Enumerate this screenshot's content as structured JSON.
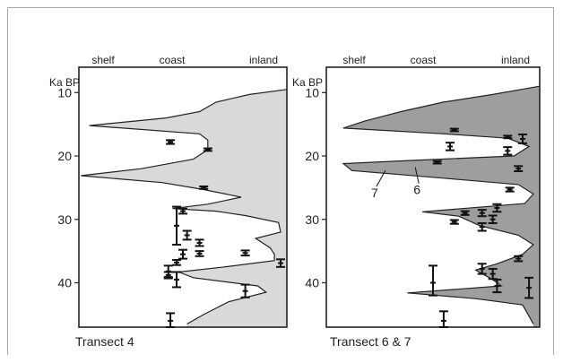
{
  "chart_data": [
    {
      "type": "area",
      "title": "Transect 4",
      "ylabel": "Ka BP",
      "x_categories": [
        "shelf",
        "coast",
        "inland"
      ],
      "yticks": [
        10,
        20,
        30,
        40
      ],
      "ylim": [
        47,
        6
      ],
      "fill_color": "#d9d9d9",
      "boundary": [
        {
          "age": 9.5,
          "pos": 1.0
        },
        {
          "age": 10.3,
          "pos": 0.82
        },
        {
          "age": 11.5,
          "pos": 0.66
        },
        {
          "age": 13.0,
          "pos": 0.58
        },
        {
          "age": 14.0,
          "pos": 0.42
        },
        {
          "age": 15.2,
          "pos": 0.05
        },
        {
          "age": 16.5,
          "pos": 0.58
        },
        {
          "age": 17.5,
          "pos": 0.62
        },
        {
          "age": 19.0,
          "pos": 0.62
        },
        {
          "age": 20.5,
          "pos": 0.55
        },
        {
          "age": 22.0,
          "pos": 0.3
        },
        {
          "age": 23.1,
          "pos": 0.01
        },
        {
          "age": 24.2,
          "pos": 0.4
        },
        {
          "age": 25.3,
          "pos": 0.6
        },
        {
          "age": 26.5,
          "pos": 0.78
        },
        {
          "age": 27.6,
          "pos": 0.62
        },
        {
          "age": 28.3,
          "pos": 0.45
        },
        {
          "age": 28.7,
          "pos": 0.66
        },
        {
          "age": 29.4,
          "pos": 0.8
        },
        {
          "age": 30.5,
          "pos": 0.96
        },
        {
          "age": 32.0,
          "pos": 0.97
        },
        {
          "age": 33.0,
          "pos": 0.85
        },
        {
          "age": 34.5,
          "pos": 0.92
        },
        {
          "age": 35.5,
          "pos": 0.94
        },
        {
          "age": 36.5,
          "pos": 0.94
        },
        {
          "age": 37.5,
          "pos": 0.7
        },
        {
          "age": 38.3,
          "pos": 0.48
        },
        {
          "age": 39.2,
          "pos": 0.55
        },
        {
          "age": 40.5,
          "pos": 0.86
        },
        {
          "age": 41.5,
          "pos": 0.9
        },
        {
          "age": 43.0,
          "pos": 0.72
        },
        {
          "age": 45.0,
          "pos": 0.6
        },
        {
          "age": 46.5,
          "pos": 0.52
        }
      ],
      "dates": [
        {
          "pos": 0.44,
          "age": 17.8,
          "lo": 17.5,
          "hi": 18.1
        },
        {
          "pos": 0.62,
          "age": 19.0,
          "lo": 18.8,
          "hi": 19.2
        },
        {
          "pos": 0.6,
          "age": 25.0,
          "lo": 24.8,
          "hi": 25.2
        },
        {
          "pos": 0.5,
          "age": 28.7,
          "lo": 28.3,
          "hi": 29.1
        },
        {
          "pos": 0.47,
          "age": 31.0,
          "lo": 28.0,
          "hi": 34.0
        },
        {
          "pos": 0.52,
          "age": 32.5,
          "lo": 31.8,
          "hi": 33.2
        },
        {
          "pos": 0.58,
          "age": 33.7,
          "lo": 33.2,
          "hi": 34.2
        },
        {
          "pos": 0.58,
          "age": 35.4,
          "lo": 35.0,
          "hi": 35.8
        },
        {
          "pos": 0.5,
          "age": 35.5,
          "lo": 34.8,
          "hi": 36.2
        },
        {
          "pos": 0.8,
          "age": 35.3,
          "lo": 34.9,
          "hi": 35.7
        },
        {
          "pos": 0.47,
          "age": 36.8,
          "lo": 36.4,
          "hi": 37.2
        },
        {
          "pos": 0.97,
          "age": 36.9,
          "lo": 36.3,
          "hi": 37.5
        },
        {
          "pos": 0.43,
          "age": 38.2,
          "lo": 37.3,
          "hi": 39.1
        },
        {
          "pos": 0.47,
          "age": 39.5,
          "lo": 38.3,
          "hi": 40.7
        },
        {
          "pos": 0.43,
          "age": 38.8,
          "lo": 38.3,
          "hi": 39.3
        },
        {
          "pos": 0.8,
          "age": 41.3,
          "lo": 40.3,
          "hi": 42.3
        },
        {
          "pos": 0.44,
          "age": 46.0,
          "lo": 44.8,
          "hi": 47.0
        }
      ]
    },
    {
      "type": "area",
      "title": "Transect 6 & 7",
      "ylabel": "Ka BP",
      "x_categories": [
        "shelf",
        "coast",
        "inland"
      ],
      "yticks": [
        10,
        20,
        30,
        40
      ],
      "ylim": [
        47,
        6
      ],
      "fill_color": "#9e9e9e",
      "boundary": [
        {
          "age": 9.0,
          "pos": 1.0
        },
        {
          "age": 10.3,
          "pos": 0.78
        },
        {
          "age": 11.5,
          "pos": 0.55
        },
        {
          "age": 13.0,
          "pos": 0.35
        },
        {
          "age": 14.5,
          "pos": 0.18
        },
        {
          "age": 15.6,
          "pos": 0.08
        },
        {
          "age": 16.5,
          "pos": 0.55
        },
        {
          "age": 17.2,
          "pos": 0.85
        },
        {
          "age": 18.5,
          "pos": 0.95
        },
        {
          "age": 20.0,
          "pos": 0.88
        },
        {
          "age": 20.7,
          "pos": 0.4
        },
        {
          "age": 21.2,
          "pos": 0.08
        },
        {
          "age": 22.3,
          "pos": 0.12
        },
        {
          "age": 23.5,
          "pos": 0.55
        },
        {
          "age": 24.5,
          "pos": 0.9
        },
        {
          "age": 26.0,
          "pos": 0.97
        },
        {
          "age": 27.5,
          "pos": 0.93
        },
        {
          "age": 28.8,
          "pos": 0.45
        },
        {
          "age": 29.5,
          "pos": 0.62
        },
        {
          "age": 31.0,
          "pos": 0.72
        },
        {
          "age": 32.5,
          "pos": 0.9
        },
        {
          "age": 34.0,
          "pos": 0.97
        },
        {
          "age": 35.5,
          "pos": 0.92
        },
        {
          "age": 37.0,
          "pos": 0.8
        },
        {
          "age": 38.0,
          "pos": 0.7
        },
        {
          "age": 39.5,
          "pos": 0.78
        },
        {
          "age": 40.5,
          "pos": 0.82
        },
        {
          "age": 41.6,
          "pos": 0.38
        },
        {
          "age": 42.5,
          "pos": 0.7
        },
        {
          "age": 43.5,
          "pos": 0.92
        },
        {
          "age": 46.5,
          "pos": 0.97
        }
      ],
      "dates": [
        {
          "pos": 0.58,
          "age": 18.5,
          "lo": 17.9,
          "hi": 19.1
        },
        {
          "pos": 0.52,
          "age": 21.0,
          "lo": 20.8,
          "hi": 21.2
        },
        {
          "pos": 0.6,
          "age": 15.9,
          "lo": 15.7,
          "hi": 16.1
        },
        {
          "pos": 0.85,
          "age": 17.0,
          "lo": 16.8,
          "hi": 17.2
        },
        {
          "pos": 0.92,
          "age": 17.3,
          "lo": 16.6,
          "hi": 18.0
        },
        {
          "pos": 0.85,
          "age": 19.2,
          "lo": 18.6,
          "hi": 19.8
        },
        {
          "pos": 0.9,
          "age": 22.0,
          "lo": 21.6,
          "hi": 22.4
        },
        {
          "pos": 0.86,
          "age": 25.3,
          "lo": 25.0,
          "hi": 25.6
        },
        {
          "pos": 0.8,
          "age": 28.2,
          "lo": 27.6,
          "hi": 28.8
        },
        {
          "pos": 0.73,
          "age": 29.0,
          "lo": 28.5,
          "hi": 29.5
        },
        {
          "pos": 0.78,
          "age": 30.0,
          "lo": 29.4,
          "hi": 30.6
        },
        {
          "pos": 0.6,
          "age": 30.4,
          "lo": 30.1,
          "hi": 30.7
        },
        {
          "pos": 0.65,
          "age": 29.0,
          "lo": 28.7,
          "hi": 29.3
        },
        {
          "pos": 0.73,
          "age": 31.2,
          "lo": 30.6,
          "hi": 31.8
        },
        {
          "pos": 0.9,
          "age": 36.2,
          "lo": 35.8,
          "hi": 36.6
        },
        {
          "pos": 0.5,
          "age": 40.0,
          "lo": 37.3,
          "hi": 42.0
        },
        {
          "pos": 0.73,
          "age": 37.8,
          "lo": 37.0,
          "hi": 38.6
        },
        {
          "pos": 0.78,
          "age": 38.6,
          "lo": 37.8,
          "hi": 39.4
        },
        {
          "pos": 0.8,
          "age": 40.5,
          "lo": 39.5,
          "hi": 41.5
        },
        {
          "pos": 0.95,
          "age": 40.8,
          "lo": 39.2,
          "hi": 42.4
        },
        {
          "pos": 0.55,
          "age": 46.0,
          "lo": 44.5,
          "hi": 47.0
        }
      ],
      "annotations": [
        {
          "text": "7",
          "age": 22.0,
          "pos": 0.26
        },
        {
          "text": "6",
          "age": 21.5,
          "pos": 0.4
        }
      ]
    }
  ]
}
